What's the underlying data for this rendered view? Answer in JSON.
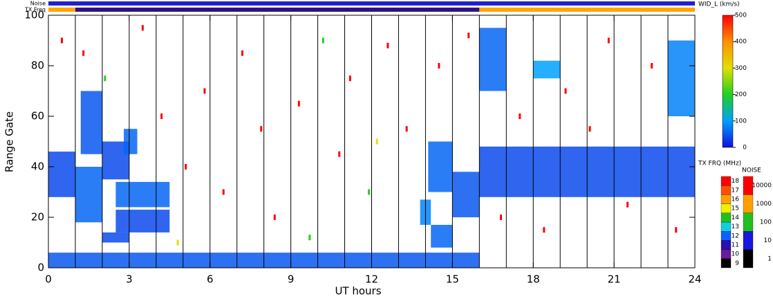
{
  "chart_data": {
    "type": "range_time",
    "xlabel": "UT hours",
    "ylabel": "Range Gate",
    "xlim": [
      0,
      24
    ],
    "xticks": [
      0,
      3,
      6,
      9,
      12,
      15,
      18,
      21,
      24
    ],
    "ylim": [
      0,
      100
    ],
    "yticks": [
      0,
      20,
      40,
      60,
      80,
      100
    ],
    "vertical_lines": [
      1,
      2,
      3,
      4,
      5,
      6,
      7,
      8,
      9,
      10,
      11,
      12,
      13,
      14,
      15,
      16,
      17,
      18,
      19,
      20,
      21,
      22,
      23
    ],
    "top_bars": [
      {
        "name": "Noise",
        "segments": [
          {
            "x": [
              0,
              24
            ],
            "color": "#2020d0"
          }
        ]
      },
      {
        "name": "TX Freq",
        "segments": [
          {
            "x": [
              0,
              1
            ],
            "color": "#ffa500"
          },
          {
            "x": [
              1,
              16
            ],
            "color": "#30108a"
          },
          {
            "x": [
              16,
              24
            ],
            "color": "#ffa500"
          }
        ]
      }
    ],
    "echo_regions": [
      [
        0,
        1,
        28,
        46,
        40
      ],
      [
        1,
        2,
        18,
        40,
        60
      ],
      [
        1.2,
        2,
        45,
        70,
        50
      ],
      [
        2,
        3,
        35,
        50,
        40
      ],
      [
        2.8,
        3.3,
        45,
        55,
        60
      ],
      [
        2,
        3,
        10,
        14,
        40
      ],
      [
        2.5,
        4.5,
        14,
        23,
        40
      ],
      [
        2.5,
        4.5,
        24,
        34,
        60
      ],
      [
        0,
        16,
        0,
        6,
        50
      ],
      [
        14.2,
        15,
        8,
        17,
        60
      ],
      [
        13.8,
        14.2,
        17,
        27,
        80
      ],
      [
        14.1,
        15,
        30,
        50,
        60
      ],
      [
        15,
        16,
        20,
        38,
        50
      ],
      [
        16,
        24,
        28,
        48,
        40
      ],
      [
        16,
        17,
        70,
        95,
        60
      ],
      [
        23,
        24,
        60,
        90,
        80
      ],
      [
        18,
        19,
        75,
        82,
        100
      ]
    ],
    "echo_points": [
      [
        0.5,
        90,
        500
      ],
      [
        1.3,
        85,
        500
      ],
      [
        2.1,
        75,
        200
      ],
      [
        3.5,
        95,
        500
      ],
      [
        4.2,
        60,
        500
      ],
      [
        5.1,
        40,
        500
      ],
      [
        5.8,
        70,
        500
      ],
      [
        6.5,
        30,
        500
      ],
      [
        7.2,
        85,
        500
      ],
      [
        7.9,
        55,
        500
      ],
      [
        8.4,
        20,
        500
      ],
      [
        9.3,
        65,
        500
      ],
      [
        10.2,
        90,
        200
      ],
      [
        10.8,
        45,
        500
      ],
      [
        11.2,
        75,
        500
      ],
      [
        11.9,
        30,
        200
      ],
      [
        12.6,
        88,
        500
      ],
      [
        13.3,
        55,
        500
      ],
      [
        14.5,
        80,
        500
      ],
      [
        15.6,
        92,
        500
      ],
      [
        16.8,
        20,
        500
      ],
      [
        17.5,
        60,
        500
      ],
      [
        18.4,
        15,
        500
      ],
      [
        19.2,
        70,
        500
      ],
      [
        20.1,
        55,
        500
      ],
      [
        20.8,
        90,
        500
      ],
      [
        21.5,
        25,
        500
      ],
      [
        22.4,
        80,
        500
      ],
      [
        23.3,
        15,
        500
      ],
      [
        9.7,
        12,
        200
      ],
      [
        4.8,
        10,
        300
      ],
      [
        12.2,
        50,
        300
      ]
    ],
    "colorbars": [
      {
        "label": "WID_L (km/s)",
        "lim": [
          0,
          500
        ],
        "ticks": [
          0,
          100,
          200,
          300,
          400,
          500
        ],
        "colors": [
          "#1010e0",
          "#00a0ff",
          "#20d020",
          "#e0e000",
          "#ff9000",
          "#ff0000"
        ]
      },
      {
        "label": "TX FRQ (MHz)",
        "ticks": [
          9,
          10,
          11,
          12,
          13,
          14,
          15,
          16,
          17,
          18
        ],
        "colors": [
          "#000000",
          "#6a1a9a",
          "#2a10b0",
          "#1060ff",
          "#10d0e0",
          "#20c020",
          "#f0f000",
          "#ffa000",
          "#ff5000",
          "#ff0000"
        ]
      },
      {
        "label": "NOISE",
        "ticks": [
          1,
          10,
          100,
          1000,
          10000
        ],
        "colors": [
          "#000000",
          "#1818e0",
          "#20c020",
          "#ffa000",
          "#ff0000"
        ]
      }
    ]
  }
}
